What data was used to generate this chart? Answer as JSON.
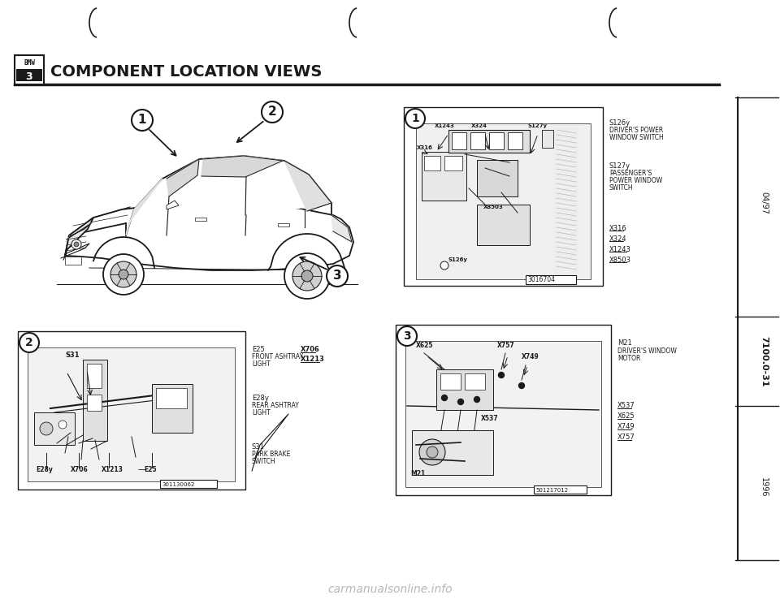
{
  "title": "COMPONENT LOCATION VIEWS",
  "page_number": "7100.0-31",
  "year": "1996",
  "date_code": "04/97",
  "bg_color": "#ffffff",
  "line_color": "#1a1a1a",
  "panel1_right_labels": [
    [
      "S126y",
      true
    ],
    [
      "DRIVER'S POWER",
      false
    ],
    [
      "WINDOW SWITCH",
      false
    ],
    [
      "",
      false
    ],
    [
      "S127y",
      true
    ],
    [
      "PASSENGER'S",
      false
    ],
    [
      "POWER WINDOW",
      false
    ],
    [
      "SWITCH",
      false
    ],
    [
      "",
      false
    ],
    [
      "X316",
      true
    ],
    [
      "X324",
      true
    ],
    [
      "X1243",
      true
    ],
    [
      "X8503",
      true
    ]
  ],
  "panel2_right_labels": [
    [
      "E25",
      true
    ],
    [
      "FRONT ASHTRAY",
      false
    ],
    [
      "LIGHT",
      false
    ],
    [
      "",
      false
    ],
    [
      "E28y",
      true
    ],
    [
      "REAR ASHTRAY",
      false
    ],
    [
      "LIGHT",
      false
    ],
    [
      "",
      false
    ],
    [
      "S31",
      true
    ],
    [
      "PARK BRAKE",
      false
    ],
    [
      "SWITCH",
      false
    ]
  ],
  "panel2_right2_labels": [
    [
      "X706",
      true
    ],
    [
      "X1213",
      true
    ]
  ],
  "panel3_right_labels": [
    [
      "M21",
      true
    ],
    [
      "DRIVER'S WINDOW",
      false
    ],
    [
      "MOTOR",
      false
    ],
    [
      "",
      false
    ],
    [
      "X537",
      true
    ],
    [
      "X625",
      true
    ],
    [
      "X749",
      true
    ],
    [
      "X757",
      true
    ]
  ],
  "panel1_inner": {
    "connectors_top": [
      "X1243",
      "X324",
      "S127y"
    ],
    "connectors_left": [
      "X316"
    ],
    "connectors_bottom": [
      "X8503",
      "S126y"
    ],
    "diagram_id": "3016704"
  },
  "panel2_inner": {
    "connectors_top": [
      "S31"
    ],
    "connectors_bottom": [
      "E28y",
      "X706",
      "X1213",
      "E25"
    ],
    "diagram_id": "301130062"
  },
  "panel3_inner": {
    "connectors_top": [
      "X625",
      "X757",
      "X749"
    ],
    "connectors_mid": [
      "X537"
    ],
    "connectors_bottom": [
      "M21"
    ],
    "diagram_id": "501217012"
  }
}
